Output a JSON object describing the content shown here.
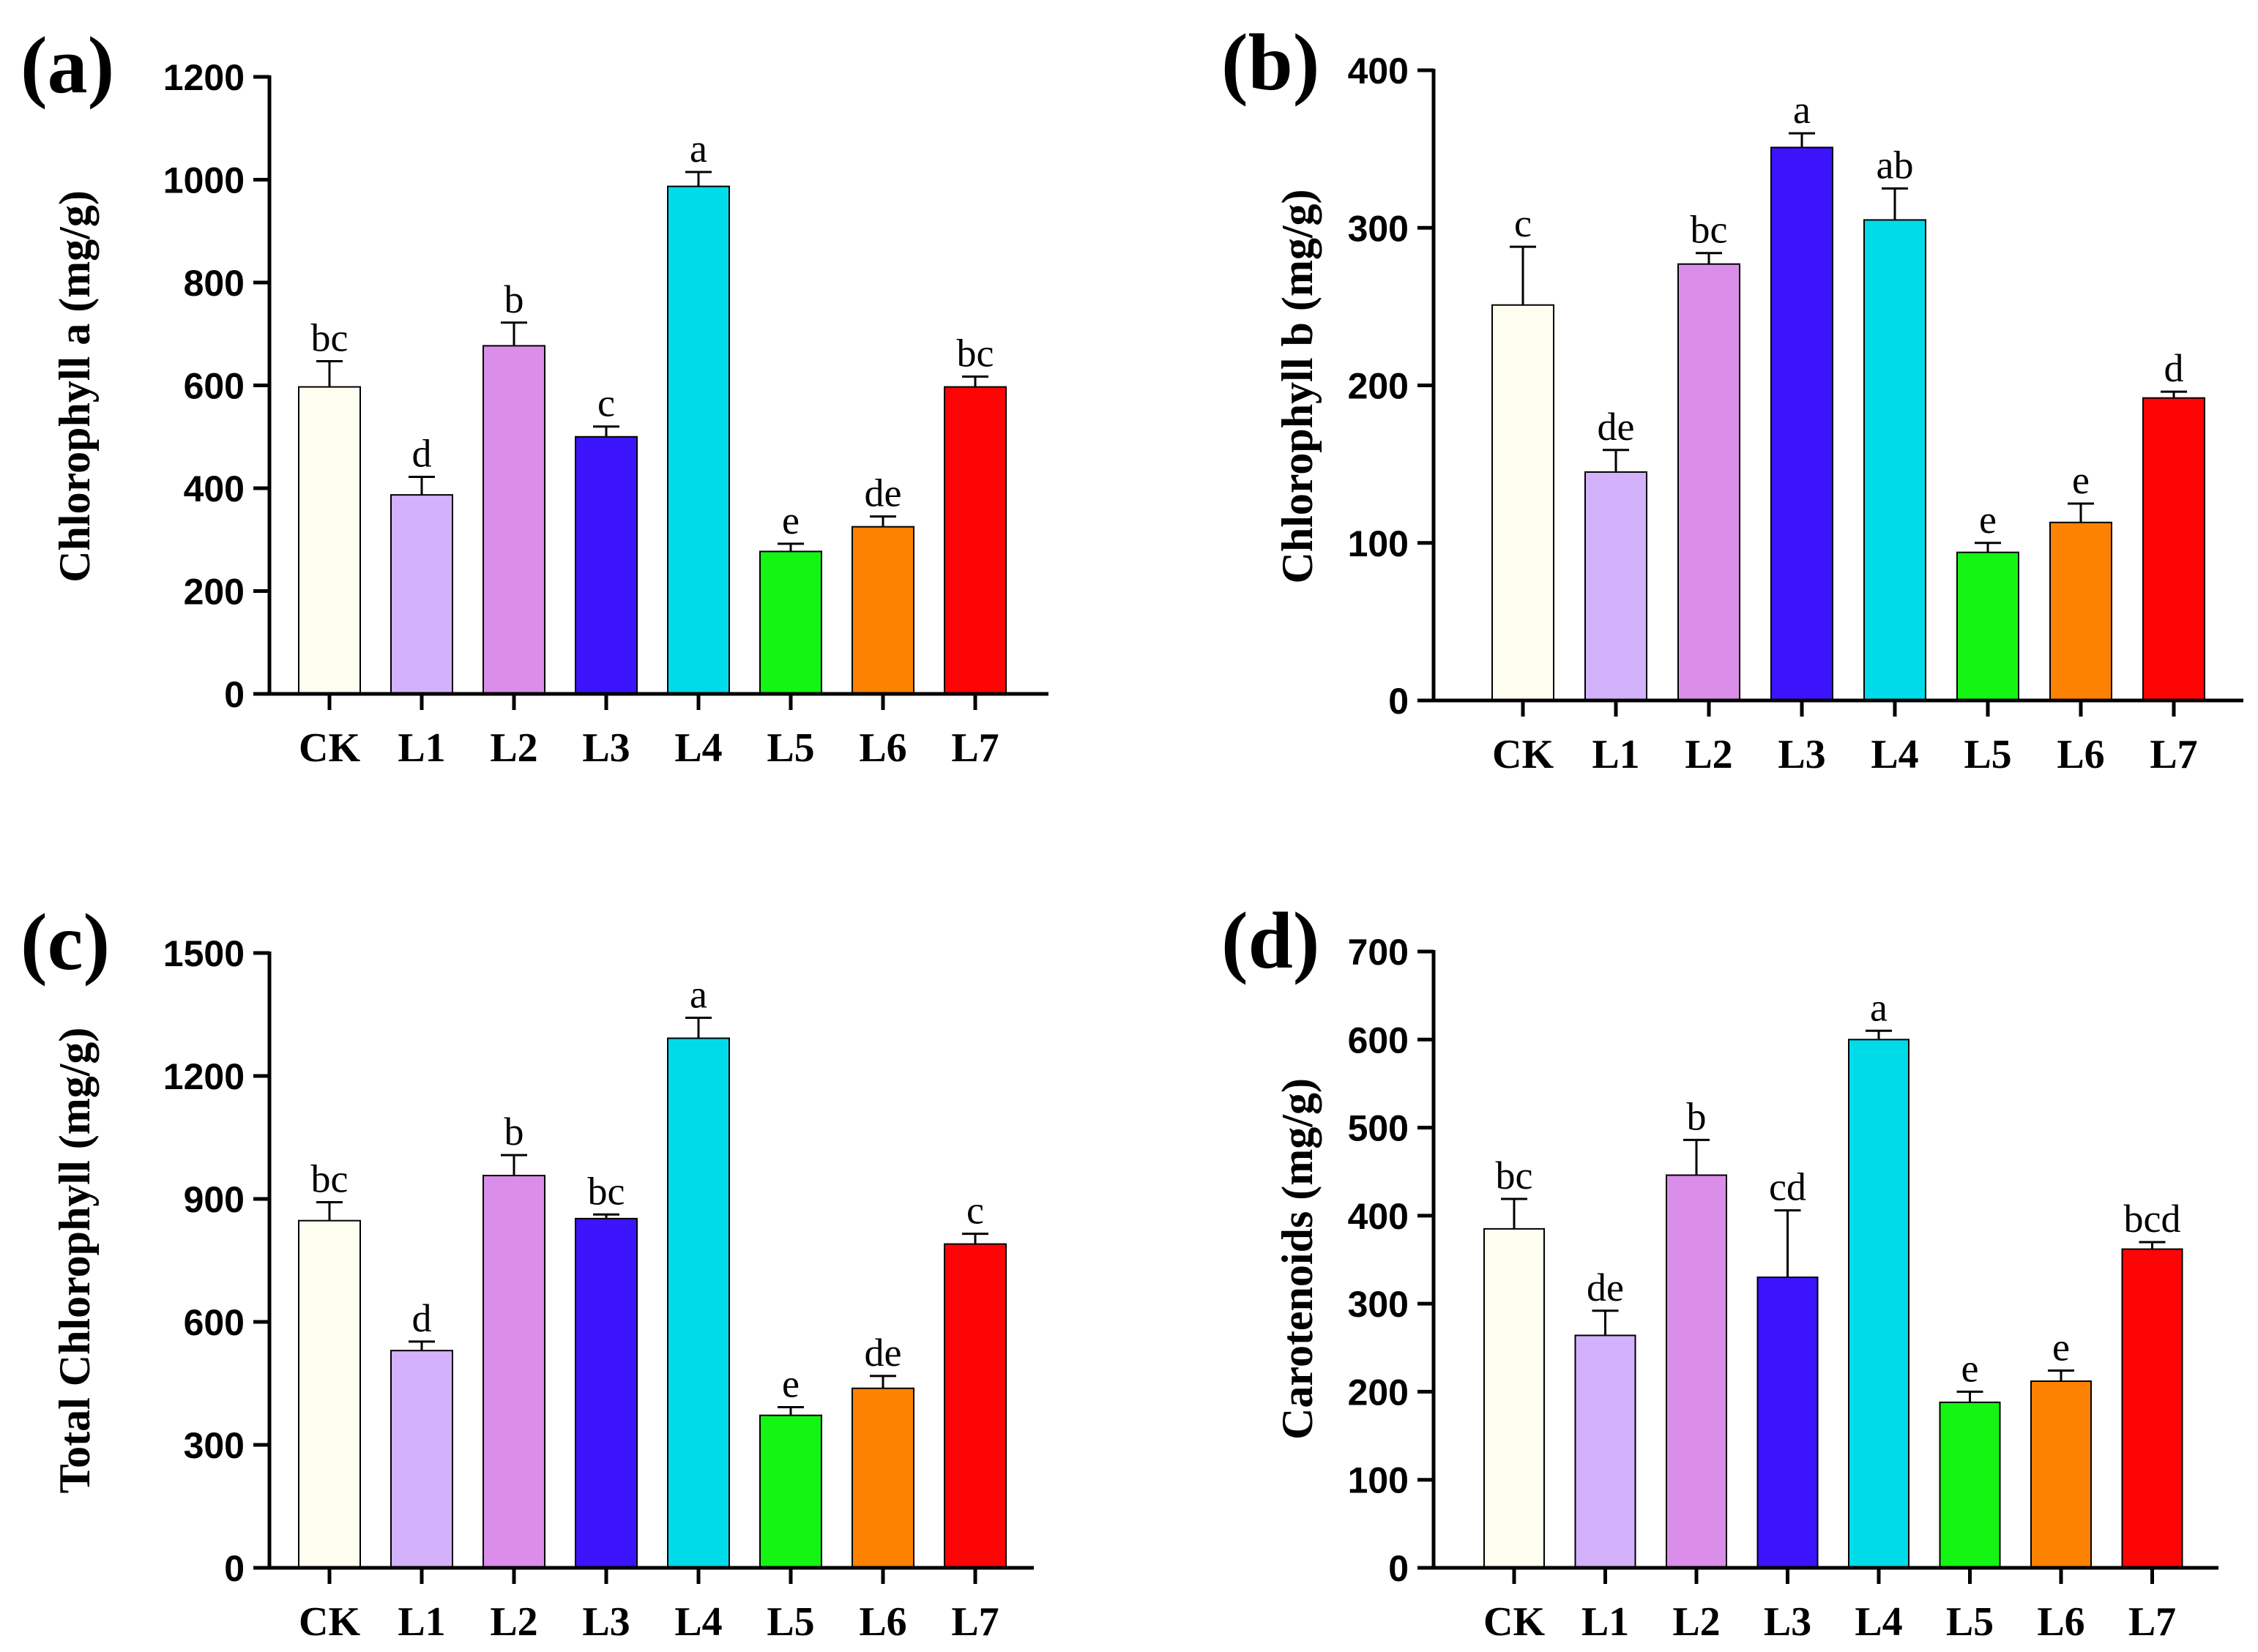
{
  "colors": {
    "CK": "#fdfdf0",
    "L1": "#d3b2fb",
    "L2": "#db8ee9",
    "L3": "#3c14fb",
    "L4": "#00dbea",
    "L5": "#14f514",
    "L6": "#fd8201",
    "L7": "#fe0505"
  },
  "chart_data": [
    {
      "panel": "(a)",
      "type": "bar",
      "ylabel": "Chlorophyll a  (mg/g)",
      "ylim": [
        0,
        1200
      ],
      "yticks": [
        0,
        200,
        400,
        600,
        800,
        1000,
        1200
      ],
      "categories": [
        "CK",
        "L1",
        "L2",
        "L3",
        "L4",
        "L5",
        "L6",
        "L7"
      ],
      "values": [
        597,
        387,
        677,
        500,
        987,
        277,
        325,
        597
      ],
      "errors": [
        50,
        35,
        45,
        20,
        28,
        15,
        20,
        20
      ],
      "significance": [
        "bc",
        "d",
        "b",
        "c",
        "a",
        "e",
        "de",
        "bc"
      ]
    },
    {
      "panel": "(b)",
      "type": "bar",
      "ylabel": "Chlorophyll b (mg/g)",
      "ylim": [
        0,
        400
      ],
      "yticks": [
        0,
        100,
        200,
        300,
        400
      ],
      "categories": [
        "CK",
        "L1",
        "L2",
        "L3",
        "L4",
        "L5",
        "L6",
        "L7"
      ],
      "values": [
        251,
        145,
        277,
        351,
        305,
        94,
        113,
        192
      ],
      "errors": [
        37,
        14,
        7,
        9,
        20,
        6,
        12,
        4
      ],
      "significance": [
        "c",
        "de",
        "bc",
        "a",
        "ab",
        "e",
        "e",
        "d"
      ]
    },
    {
      "panel": "(c)",
      "type": "bar",
      "ylabel": "Total Chlorophyll (mg/g)",
      "ylim": [
        0,
        1500
      ],
      "yticks": [
        0,
        300,
        600,
        900,
        1200,
        1500
      ],
      "categories": [
        "CK",
        "L1",
        "L2",
        "L3",
        "L4",
        "L5",
        "L6",
        "L7"
      ],
      "values": [
        847,
        530,
        957,
        852,
        1292,
        372,
        438,
        790
      ],
      "errors": [
        45,
        22,
        50,
        10,
        50,
        20,
        30,
        25
      ],
      "significance": [
        "bc",
        "d",
        "b",
        "bc",
        "a",
        "e",
        "de",
        "c"
      ]
    },
    {
      "panel": "(d)",
      "type": "bar",
      "ylabel": "Carotenoids (mg/g)",
      "ylim": [
        0,
        700
      ],
      "yticks": [
        0,
        100,
        200,
        300,
        400,
        500,
        600,
        700
      ],
      "categories": [
        "CK",
        "L1",
        "L2",
        "L3",
        "L4",
        "L5",
        "L6",
        "L7"
      ],
      "values": [
        385,
        264,
        446,
        330,
        600,
        188,
        212,
        362
      ],
      "errors": [
        34,
        28,
        40,
        76,
        10,
        12,
        12,
        8
      ],
      "significance": [
        "bc",
        "de",
        "b",
        "cd",
        "a",
        "e",
        "e",
        "bcd"
      ]
    }
  ]
}
